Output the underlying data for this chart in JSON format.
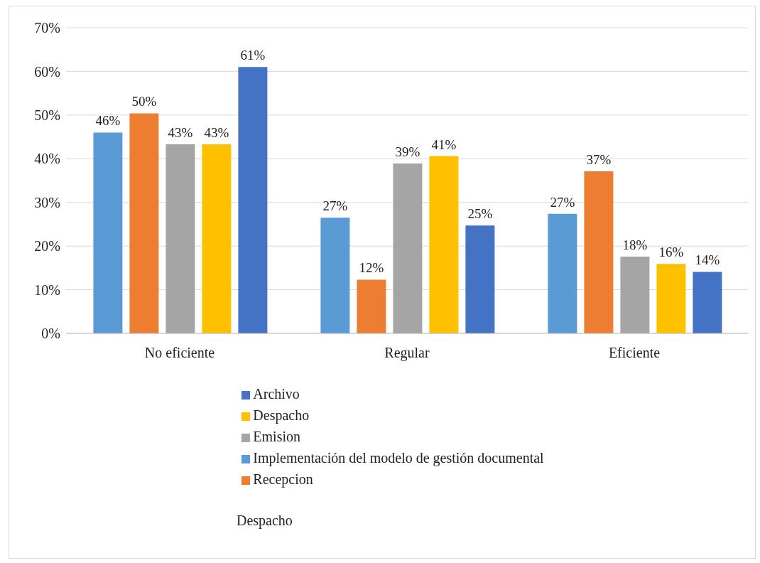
{
  "chart_data": {
    "type": "bar",
    "categories": [
      "No eficiente",
      "Regular",
      "Eficiente"
    ],
    "series": [
      {
        "name": "Implementación del modelo de gestión documental",
        "color": "#5b9bd5",
        "values": [
          46,
          26.5,
          27.4
        ],
        "value_labels": [
          "46%",
          "27%",
          "27%"
        ]
      },
      {
        "name": "Recepcion",
        "color": "#ed7d31",
        "values": [
          50.4,
          12.3,
          37.1
        ],
        "value_labels": [
          "50%",
          "12%",
          "37%"
        ]
      },
      {
        "name": "Emision",
        "color": "#a5a5a5",
        "values": [
          43.3,
          38.9,
          17.6
        ],
        "value_labels": [
          "43%",
          "39%",
          "18%"
        ]
      },
      {
        "name": "Despacho",
        "color": "#ffc000",
        "values": [
          43.3,
          40.6,
          15.9
        ],
        "value_labels": [
          "43%",
          "41%",
          "16%"
        ]
      },
      {
        "name": "Archivo",
        "color": "#4472c4",
        "values": [
          61,
          24.7,
          14.1
        ],
        "value_labels": [
          "61%",
          "25%",
          "14%"
        ]
      }
    ],
    "ylim": [
      0,
      70
    ],
    "yticks": [
      {
        "value": 0,
        "label": "0%"
      },
      {
        "value": 10,
        "label": "10%"
      },
      {
        "value": 20,
        "label": "20%"
      },
      {
        "value": 30,
        "label": "30%"
      },
      {
        "value": 40,
        "label": "40%"
      },
      {
        "value": 50,
        "label": "50%"
      },
      {
        "value": 60,
        "label": "60%"
      },
      {
        "value": 70,
        "label": "70%"
      }
    ],
    "grid": "y",
    "legend": "bottom",
    "annotations": [
      "Despacho"
    ]
  }
}
